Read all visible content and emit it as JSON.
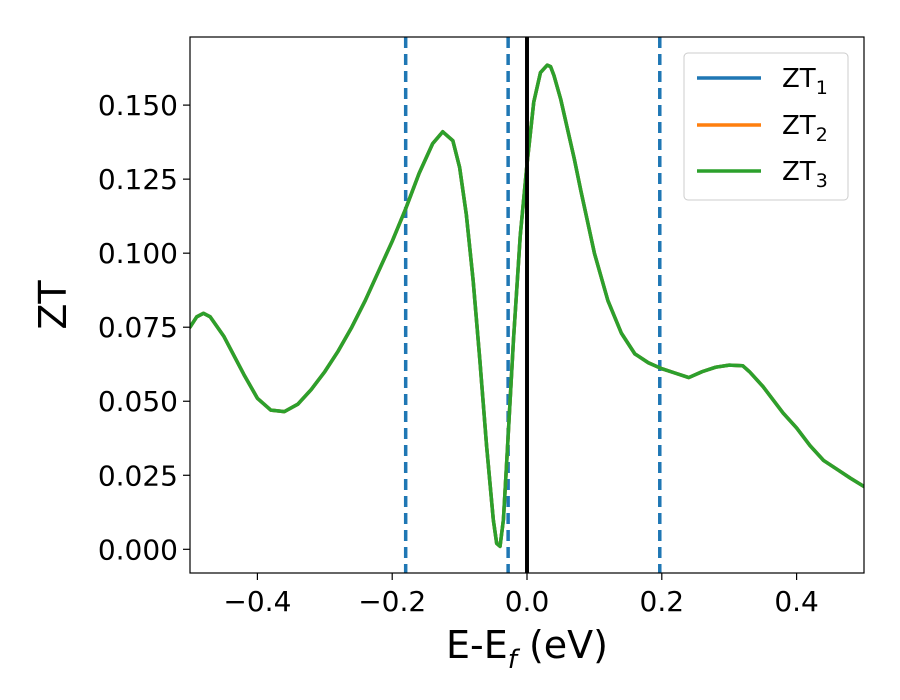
{
  "chart_data": {
    "type": "line",
    "xlabel": "E-E",
    "xlabel_sub": "f",
    "xlabel_unit": " (eV)",
    "ylabel": "ZT",
    "xlim": [
      -0.5,
      0.5
    ],
    "ylim": [
      -0.008,
      0.173
    ],
    "xticks": [
      {
        "value": -0.4,
        "label": "−0.4"
      },
      {
        "value": -0.2,
        "label": "−0.2"
      },
      {
        "value": 0.0,
        "label": "0.0"
      },
      {
        "value": 0.2,
        "label": "0.2"
      },
      {
        "value": 0.4,
        "label": "0.4"
      }
    ],
    "yticks": [
      {
        "value": 0.0,
        "label": "0.000"
      },
      {
        "value": 0.025,
        "label": "0.025"
      },
      {
        "value": 0.05,
        "label": "0.050"
      },
      {
        "value": 0.075,
        "label": "0.075"
      },
      {
        "value": 0.1,
        "label": "0.100"
      },
      {
        "value": 0.125,
        "label": "0.125"
      },
      {
        "value": 0.15,
        "label": "0.150"
      }
    ],
    "grid": false,
    "legend_position": "top-right",
    "vlines": [
      {
        "x": -0.18,
        "style": "dashed",
        "color": "#1f77b4"
      },
      {
        "x": -0.028,
        "style": "dashed",
        "color": "#1f77b4"
      },
      {
        "x": 0.0,
        "style": "solid",
        "color": "#000000"
      },
      {
        "x": 0.197,
        "style": "dashed",
        "color": "#1f77b4"
      }
    ],
    "series": [
      {
        "name": "ZT",
        "sub": "1",
        "color": "#1f77b4",
        "x": [
          -0.5,
          -0.49,
          -0.48,
          -0.47,
          -0.45,
          -0.42,
          -0.4,
          -0.38,
          -0.36,
          -0.34,
          -0.32,
          -0.3,
          -0.28,
          -0.26,
          -0.24,
          -0.22,
          -0.2,
          -0.18,
          -0.16,
          -0.14,
          -0.125,
          -0.11,
          -0.1,
          -0.09,
          -0.08,
          -0.07,
          -0.06,
          -0.05,
          -0.045,
          -0.04,
          -0.035,
          -0.03,
          -0.02,
          -0.01,
          0.0,
          0.01,
          0.02,
          0.03,
          0.035,
          0.04,
          0.05,
          0.06,
          0.07,
          0.08,
          0.1,
          0.12,
          0.14,
          0.16,
          0.18,
          0.2,
          0.22,
          0.24,
          0.26,
          0.28,
          0.3,
          0.32,
          0.33,
          0.35,
          0.38,
          0.4,
          0.42,
          0.44,
          0.46,
          0.48,
          0.5
        ],
        "y": [
          0.075,
          0.0785,
          0.0797,
          0.0785,
          0.072,
          0.059,
          0.051,
          0.047,
          0.0465,
          0.049,
          0.054,
          0.06,
          0.067,
          0.075,
          0.084,
          0.094,
          0.104,
          0.115,
          0.127,
          0.137,
          0.141,
          0.138,
          0.129,
          0.113,
          0.091,
          0.064,
          0.035,
          0.01,
          0.002,
          0.001,
          0.01,
          0.03,
          0.071,
          0.106,
          0.13,
          0.151,
          0.161,
          0.1635,
          0.163,
          0.16,
          0.152,
          0.142,
          0.132,
          0.121,
          0.1,
          0.084,
          0.073,
          0.066,
          0.063,
          0.061,
          0.0595,
          0.058,
          0.06,
          0.0615,
          0.0622,
          0.062,
          0.06,
          0.055,
          0.046,
          0.041,
          0.035,
          0.03,
          0.027,
          0.024,
          0.0212
        ]
      },
      {
        "name": "ZT",
        "sub": "2",
        "color": "#ff7f0e",
        "x": [
          -0.5,
          -0.49,
          -0.48,
          -0.47,
          -0.45,
          -0.42,
          -0.4,
          -0.38,
          -0.36,
          -0.34,
          -0.32,
          -0.3,
          -0.28,
          -0.26,
          -0.24,
          -0.22,
          -0.2,
          -0.18,
          -0.16,
          -0.14,
          -0.125,
          -0.11,
          -0.1,
          -0.09,
          -0.08,
          -0.07,
          -0.06,
          -0.05,
          -0.045,
          -0.04,
          -0.035,
          -0.03,
          -0.02,
          -0.01,
          0.0,
          0.01,
          0.02,
          0.03,
          0.035,
          0.04,
          0.05,
          0.06,
          0.07,
          0.08,
          0.1,
          0.12,
          0.14,
          0.16,
          0.18,
          0.2,
          0.22,
          0.24,
          0.26,
          0.28,
          0.3,
          0.32,
          0.33,
          0.35,
          0.38,
          0.4,
          0.42,
          0.44,
          0.46,
          0.48,
          0.5
        ],
        "y": [
          0.075,
          0.0785,
          0.0797,
          0.0785,
          0.072,
          0.059,
          0.051,
          0.047,
          0.0465,
          0.049,
          0.054,
          0.06,
          0.067,
          0.075,
          0.084,
          0.094,
          0.104,
          0.115,
          0.127,
          0.137,
          0.141,
          0.138,
          0.129,
          0.113,
          0.091,
          0.064,
          0.035,
          0.01,
          0.002,
          0.001,
          0.01,
          0.03,
          0.071,
          0.106,
          0.13,
          0.151,
          0.161,
          0.1635,
          0.163,
          0.16,
          0.152,
          0.142,
          0.132,
          0.121,
          0.1,
          0.084,
          0.073,
          0.066,
          0.063,
          0.061,
          0.0595,
          0.058,
          0.06,
          0.0615,
          0.0622,
          0.062,
          0.06,
          0.055,
          0.046,
          0.041,
          0.035,
          0.03,
          0.027,
          0.024,
          0.0212
        ]
      },
      {
        "name": "ZT",
        "sub": "3",
        "color": "#2ca02c",
        "x": [
          -0.5,
          -0.49,
          -0.48,
          -0.47,
          -0.45,
          -0.42,
          -0.4,
          -0.38,
          -0.36,
          -0.34,
          -0.32,
          -0.3,
          -0.28,
          -0.26,
          -0.24,
          -0.22,
          -0.2,
          -0.18,
          -0.16,
          -0.14,
          -0.125,
          -0.11,
          -0.1,
          -0.09,
          -0.08,
          -0.07,
          -0.06,
          -0.05,
          -0.045,
          -0.04,
          -0.035,
          -0.03,
          -0.02,
          -0.01,
          0.0,
          0.01,
          0.02,
          0.03,
          0.035,
          0.04,
          0.05,
          0.06,
          0.07,
          0.08,
          0.1,
          0.12,
          0.14,
          0.16,
          0.18,
          0.2,
          0.22,
          0.24,
          0.26,
          0.28,
          0.3,
          0.32,
          0.33,
          0.35,
          0.38,
          0.4,
          0.42,
          0.44,
          0.46,
          0.48,
          0.5
        ],
        "y": [
          0.075,
          0.0785,
          0.0797,
          0.0785,
          0.072,
          0.059,
          0.051,
          0.047,
          0.0465,
          0.049,
          0.054,
          0.06,
          0.067,
          0.075,
          0.084,
          0.094,
          0.104,
          0.115,
          0.127,
          0.137,
          0.141,
          0.138,
          0.129,
          0.113,
          0.091,
          0.064,
          0.035,
          0.01,
          0.002,
          0.001,
          0.01,
          0.03,
          0.071,
          0.106,
          0.13,
          0.151,
          0.161,
          0.1635,
          0.163,
          0.16,
          0.152,
          0.142,
          0.132,
          0.121,
          0.1,
          0.084,
          0.073,
          0.066,
          0.063,
          0.061,
          0.0595,
          0.058,
          0.06,
          0.0615,
          0.0622,
          0.062,
          0.06,
          0.055,
          0.046,
          0.041,
          0.035,
          0.03,
          0.027,
          0.024,
          0.0212
        ]
      }
    ]
  }
}
